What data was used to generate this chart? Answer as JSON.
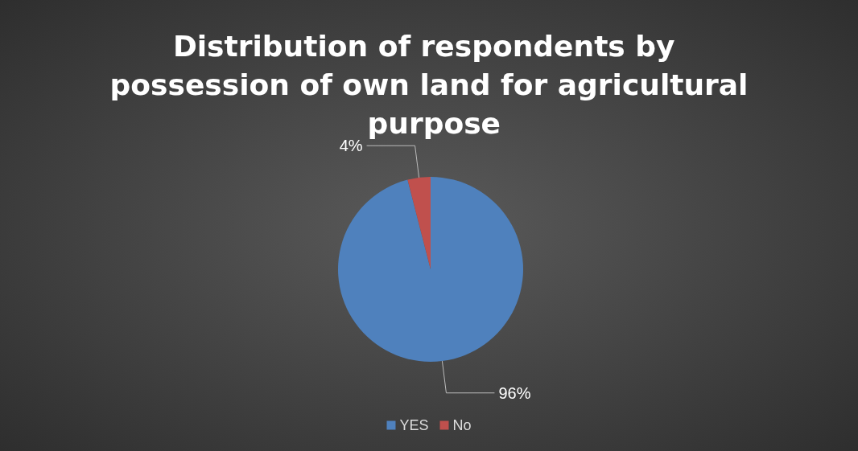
{
  "chart_data": {
    "type": "pie",
    "title": "Distribution of respondents by possession of own land for agricultural purpose",
    "categories": [
      "YES",
      "No"
    ],
    "values": [
      96,
      4
    ],
    "colors": [
      "#4f81bd",
      "#c0504d"
    ],
    "value_labels": [
      "96%",
      "4%"
    ],
    "legend": "bottom"
  }
}
